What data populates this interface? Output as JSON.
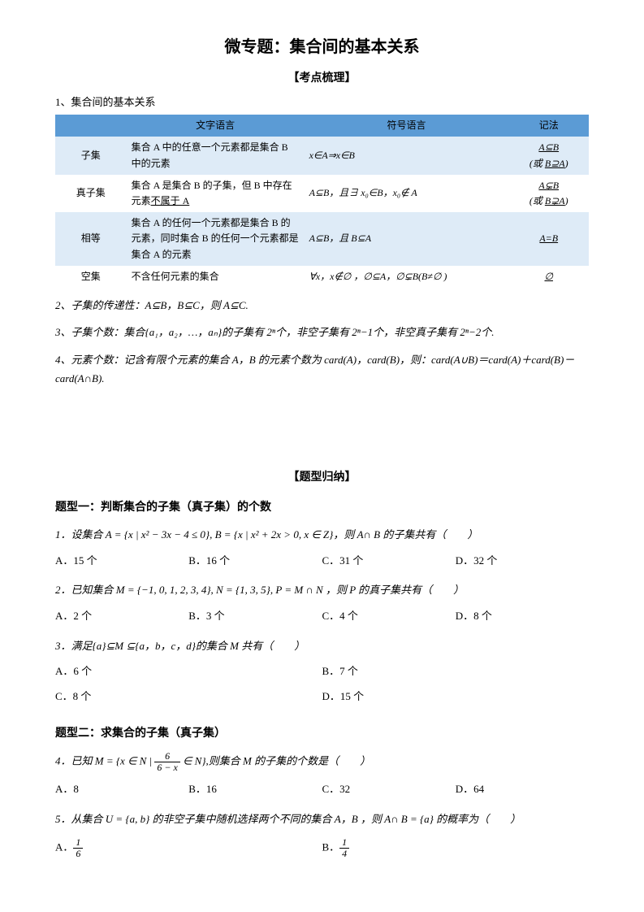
{
  "title": "微专题：集合间的基本关系",
  "section1_header": "【考点梳理】",
  "point1_label": "1、集合间的基本关系",
  "table": {
    "headers": [
      "",
      "文字语言",
      "符号语言",
      "记法"
    ],
    "header_bg": "#5b9bd5",
    "row_bg_alt": "#deebf7",
    "rows": [
      {
        "name": "子集",
        "desc": "集合 A 中的任意一个元素都是集合 B 中的元素",
        "symbol": "x∈A⇒x∈B",
        "notation": "A⊆B",
        "notation2": "(或 B⊇A)"
      },
      {
        "name": "真子集",
        "desc_pre": "集合 A 是集合 B 的子集，但 B 中存在元素",
        "desc_underline": "不属于 A",
        "symbol": "A⊆B，且∃ x₀∈B，x₀∉ A",
        "notation": "A⊊B",
        "notation2": "(或 B⊋A)"
      },
      {
        "name": "相等",
        "desc": "集合 A 的任何一个元素都是集合 B 的元素，同时集合 B 的任何一个元素都是集合 A 的元素",
        "symbol": "A⊆B，且 B⊆A",
        "notation": "A=B"
      },
      {
        "name": "空集",
        "desc": "不含任何元素的集合",
        "symbol": "∀x，x∉∅ ，∅⊆A，∅⊊B(B≠∅ )",
        "notation": "∅"
      }
    ]
  },
  "point2": "2、子集的传递性：A⊆B，B⊆C，则 A⊆C.",
  "point3": "3、子集个数：集合{a₁，a₂，…，aₙ}的子集有 2ⁿ个，非空子集有 2ⁿ−1个，非空真子集有 2ⁿ−2个.",
  "point4": "4、元素个数：记含有限个元素的集合 A，B 的元素个数为 card(A)，card(B)，则：card(A∪B)＝card(A)＋card(B)－card(A∩B).",
  "section2_header": "【题型归纳】",
  "topic1": "题型一：判断集合的子集（真子集）的个数",
  "q1": {
    "text": "1．设集合 A = {x | x² − 3x − 4 ≤ 0}, B = {x | x² + 2x > 0, x ∈ Z}，则 A∩ B 的子集共有（　　）",
    "opts": [
      "A．15 个",
      "B．16 个",
      "C．31 个",
      "D．32 个"
    ]
  },
  "q2": {
    "text": "2．已知集合 M = {−1, 0, 1, 2, 3, 4}, N = {1, 3, 5}, P = M ∩ N ，则 P 的真子集共有（　　）",
    "opts": [
      "A．2 个",
      "B．3 个",
      "C．4 个",
      "D．8 个"
    ]
  },
  "q3": {
    "text": "3．满足{a}⊆M ⊆{a，b，c，d}的集合  M 共有（　　）",
    "opts": [
      "A．6 个",
      "B．7 个",
      "C．8 个",
      "D．15 个"
    ]
  },
  "topic2": "题型二：求集合的子集（真子集）",
  "q4": {
    "text_pre": "4．已知 M = {x ∈ N | ",
    "frac_num": "6",
    "frac_den": "6 − x",
    "text_post": " ∈ N},则集合 M 的子集的个数是（　　）",
    "opts": [
      "A．8",
      "B．16",
      "C．32",
      "D．64"
    ]
  },
  "q5": {
    "text": "5．从集合 U = {a, b} 的非空子集中随机选择两个不同的集合 A，B ，则 A∩ B = {a} 的概率为（　　）",
    "optA_pre": "A．",
    "optA_num": "1",
    "optA_den": "6",
    "optB_pre": "B．",
    "optB_num": "1",
    "optB_den": "4"
  }
}
